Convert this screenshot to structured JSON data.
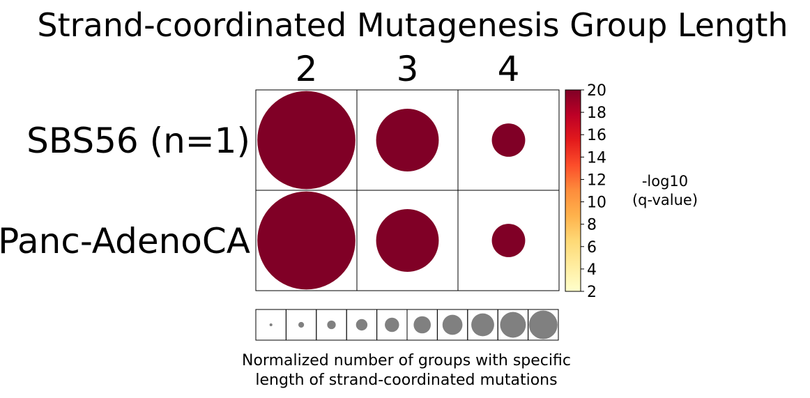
{
  "chart_data": {
    "type": "bubble-heatmap",
    "title": "Strand-coordinated Mutagenesis Group Length",
    "x_categories": [
      "2",
      "3",
      "4"
    ],
    "y_categories": [
      "SBS56 (n=1)",
      "Panc-AdenoCA"
    ],
    "cells": [
      {
        "row": 0,
        "col": 0,
        "size": 0.97,
        "neg_log10_q": 20
      },
      {
        "row": 0,
        "col": 1,
        "size": 0.62,
        "neg_log10_q": 20
      },
      {
        "row": 0,
        "col": 2,
        "size": 0.33,
        "neg_log10_q": 20
      },
      {
        "row": 1,
        "col": 0,
        "size": 0.97,
        "neg_log10_q": 20
      },
      {
        "row": 1,
        "col": 1,
        "size": 0.62,
        "neg_log10_q": 20
      },
      {
        "row": 1,
        "col": 2,
        "size": 0.33,
        "neg_log10_q": 20
      }
    ],
    "colorbar": {
      "label_line1": "-log10",
      "label_line2": "(q-value)",
      "range": [
        2,
        20
      ],
      "ticks": [
        "2",
        "4",
        "6",
        "8",
        "10",
        "12",
        "14",
        "16",
        "18",
        "20"
      ],
      "colormap": [
        "#ffffcc",
        "#ffeda0",
        "#fed976",
        "#feb24c",
        "#fd8d3c",
        "#fc4e2a",
        "#e31a1c",
        "#bd0026",
        "#800026"
      ]
    },
    "size_legend": {
      "values": [
        0.1,
        0.2,
        0.3,
        0.4,
        0.5,
        0.6,
        0.7,
        0.8,
        0.9,
        1.0
      ],
      "color": "#808080",
      "label_line1": "Normalized number of groups with specific",
      "label_line2": "length of strand-coordinated mutations"
    }
  }
}
